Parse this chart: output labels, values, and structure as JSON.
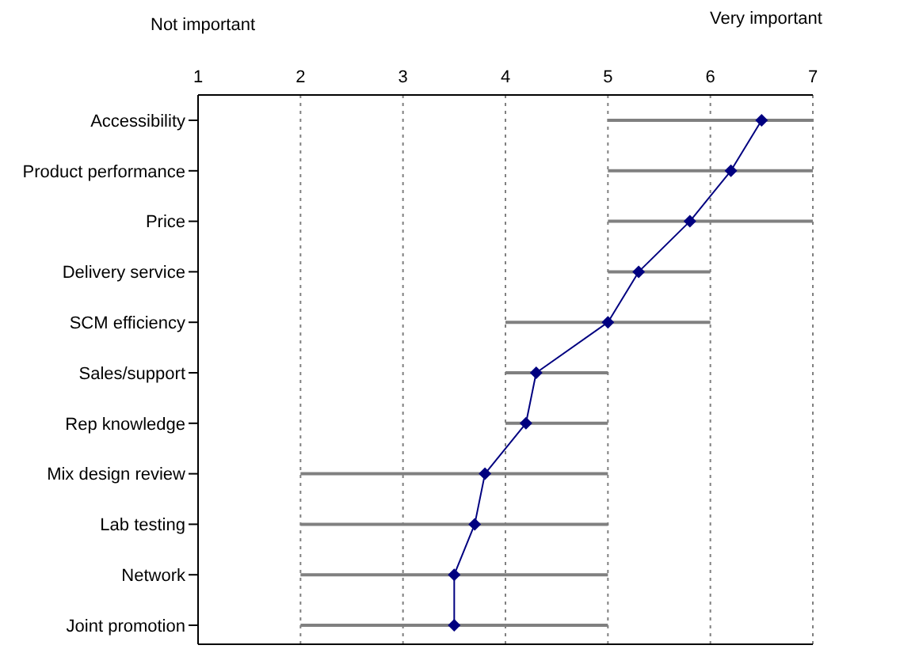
{
  "chart_data": {
    "type": "line",
    "orientation": "horizontal",
    "categories": [
      "Accessibility",
      "Product performance",
      "Price",
      "Delivery service",
      "SCM efficiency",
      "Sales/support",
      "Rep knowledge",
      "Mix design review",
      "Lab testing",
      "Network",
      "Joint promotion"
    ],
    "values": [
      6.5,
      6.2,
      5.8,
      5.3,
      5.0,
      4.3,
      4.2,
      3.8,
      3.7,
      3.5,
      3.5
    ],
    "errors": [
      [
        5,
        7
      ],
      [
        5,
        7
      ],
      [
        5,
        7
      ],
      [
        5,
        6
      ],
      [
        4,
        6
      ],
      [
        4,
        5
      ],
      [
        4,
        5
      ],
      [
        2,
        5
      ],
      [
        2,
        5
      ],
      [
        2,
        5
      ],
      [
        2,
        5
      ]
    ],
    "color": "#000080",
    "marker": "diamond",
    "line_style": "solid",
    "xlim": [
      1,
      7
    ],
    "xticks": [
      1,
      2,
      3,
      4,
      5,
      6,
      7
    ],
    "grid": "x",
    "annotations": [
      "Not important",
      "Very important"
    ]
  }
}
